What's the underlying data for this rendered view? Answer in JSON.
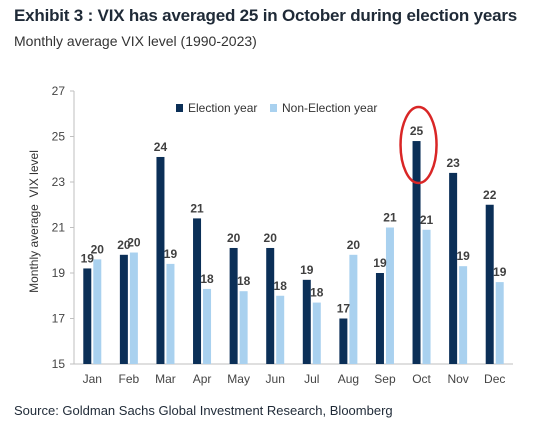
{
  "title": "Exhibit 3 : VIX has averaged 25 in October during election years",
  "subtitle": "Monthly average VIX level (1990-2023)",
  "source": "Source: Goldman Sachs Global Investment Research, Bloomberg",
  "colors": {
    "election": "#0b2f57",
    "non_election": "#a9d1ef",
    "highlight": "#d92626",
    "axis": "#bfbfbf"
  },
  "chart_data": {
    "type": "bar",
    "categories": [
      "Jan",
      "Feb",
      "Mar",
      "Apr",
      "May",
      "Jun",
      "Jul",
      "Aug",
      "Sep",
      "Oct",
      "Nov",
      "Dec"
    ],
    "series": [
      {
        "name": "Election year",
        "values": [
          19.2,
          19.8,
          24.1,
          21.4,
          20.1,
          20.1,
          18.7,
          17.0,
          19.0,
          24.8,
          23.4,
          22.0
        ],
        "labels": [
          "19",
          "20",
          "24",
          "21",
          "20",
          "20",
          "19",
          "17",
          "19",
          "25",
          "23",
          "22"
        ]
      },
      {
        "name": "Non-Election year",
        "values": [
          19.6,
          19.9,
          19.4,
          18.3,
          18.2,
          18.0,
          17.7,
          19.8,
          21.0,
          20.9,
          19.3,
          18.6
        ],
        "labels": [
          "20",
          "20",
          "19",
          "18",
          "18",
          "18",
          "18",
          "20",
          "21",
          "21",
          "19",
          "19"
        ]
      }
    ],
    "ylabel": "Monthly average  VIX level",
    "ylim": [
      15,
      27
    ],
    "yticks": [
      "15",
      "17",
      "19",
      "21",
      "23",
      "25",
      "27"
    ],
    "grid": false,
    "legend": "top-center",
    "highlight_category": "Oct"
  }
}
